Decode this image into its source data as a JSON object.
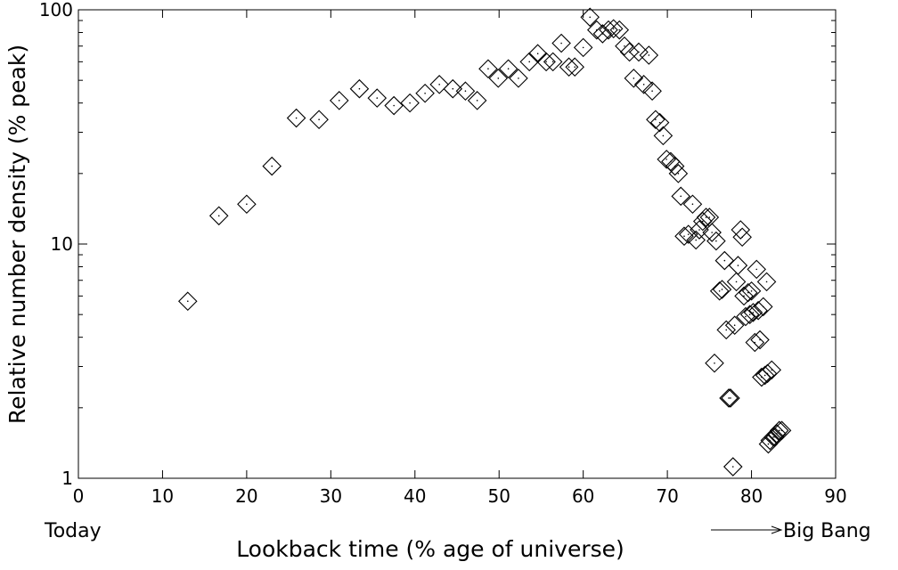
{
  "chart_data": {
    "type": "scatter",
    "title": "",
    "xlabel": "Lookback time (% age of universe)",
    "ylabel": "Relative number density (% peak)",
    "xlim": [
      0,
      90
    ],
    "ylim": [
      1,
      100
    ],
    "yscale": "log",
    "grid": false,
    "marker": "diamond",
    "x_ticks": [
      0,
      10,
      20,
      30,
      40,
      50,
      60,
      70,
      80,
      90
    ],
    "y_ticks": [
      1,
      10,
      100
    ],
    "x_tick_labels": [
      "0",
      "10",
      "20",
      "30",
      "40",
      "50",
      "60",
      "70",
      "80",
      "90"
    ],
    "y_tick_labels": [
      "1",
      "10",
      "100"
    ],
    "annotations": {
      "left": "Today",
      "right": "Big Bang"
    },
    "series": [
      {
        "points": [
          [
            13.0,
            5.7
          ],
          [
            16.7,
            13.2
          ],
          [
            20.0,
            14.8
          ],
          [
            23.0,
            21.5
          ],
          [
            25.9,
            34.5
          ],
          [
            28.6,
            34.0
          ],
          [
            31.0,
            41.0
          ],
          [
            33.4,
            46.0
          ],
          [
            35.5,
            42.0
          ],
          [
            37.5,
            39.0
          ],
          [
            39.4,
            40.0
          ],
          [
            41.2,
            44.0
          ],
          [
            42.9,
            48.0
          ],
          [
            44.5,
            46.0
          ],
          [
            46.0,
            45.0
          ],
          [
            47.4,
            41.0
          ],
          [
            48.7,
            56.0
          ],
          [
            49.9,
            51.0
          ],
          [
            51.1,
            56.0
          ],
          [
            52.3,
            51.0
          ],
          [
            53.6,
            60.0
          ],
          [
            54.6,
            65.0
          ],
          [
            55.6,
            60.0
          ],
          [
            56.4,
            60.0
          ],
          [
            57.4,
            72.0
          ],
          [
            58.3,
            57.0
          ],
          [
            59.0,
            57.0
          ],
          [
            60.0,
            69.0
          ],
          [
            60.8,
            93.0
          ],
          [
            61.6,
            82.0
          ],
          [
            62.3,
            79.0
          ],
          [
            63.0,
            82.0
          ],
          [
            63.6,
            83.0
          ],
          [
            64.3,
            82.0
          ],
          [
            64.9,
            70.0
          ],
          [
            65.5,
            66.0
          ],
          [
            66.0,
            51.0
          ],
          [
            66.6,
            66.0
          ],
          [
            67.2,
            48.0
          ],
          [
            67.8,
            64.0
          ],
          [
            68.2,
            45.0
          ],
          [
            68.6,
            34.0
          ],
          [
            69.1,
            33.0
          ],
          [
            69.5,
            29.0
          ],
          [
            69.9,
            23.0
          ],
          [
            70.4,
            22.5
          ],
          [
            70.9,
            21.5
          ],
          [
            71.3,
            20.0
          ],
          [
            71.6,
            16.0
          ],
          [
            72.0,
            10.8
          ],
          [
            72.5,
            11.0
          ],
          [
            73.0,
            14.8
          ],
          [
            73.4,
            10.4
          ],
          [
            73.8,
            11.5
          ],
          [
            74.2,
            12.5
          ],
          [
            74.6,
            13.0
          ],
          [
            75.0,
            13.0
          ],
          [
            75.3,
            11.2
          ],
          [
            75.6,
            3.1
          ],
          [
            75.8,
            10.3
          ],
          [
            76.2,
            6.3
          ],
          [
            76.5,
            6.4
          ],
          [
            76.8,
            8.5
          ],
          [
            77.0,
            4.3
          ],
          [
            77.3,
            2.2
          ],
          [
            77.5,
            2.2
          ],
          [
            77.8,
            1.12
          ],
          [
            78.0,
            4.5
          ],
          [
            78.2,
            6.9
          ],
          [
            78.4,
            8.1
          ],
          [
            78.7,
            11.5
          ],
          [
            78.9,
            10.7
          ],
          [
            79.1,
            6.0
          ],
          [
            79.3,
            4.9
          ],
          [
            79.6,
            6.2
          ],
          [
            79.8,
            5.0
          ],
          [
            80.0,
            6.3
          ],
          [
            80.2,
            5.1
          ],
          [
            80.4,
            3.8
          ],
          [
            80.6,
            7.8
          ],
          [
            80.8,
            5.2
          ],
          [
            81.0,
            3.9
          ],
          [
            81.2,
            2.7
          ],
          [
            81.4,
            5.4
          ],
          [
            81.6,
            2.75
          ],
          [
            81.8,
            6.9
          ],
          [
            81.9,
            2.8
          ],
          [
            82.0,
            1.4
          ],
          [
            82.2,
            1.45
          ],
          [
            82.4,
            2.9
          ],
          [
            82.6,
            1.5
          ],
          [
            82.8,
            1.5
          ],
          [
            83.0,
            1.55
          ],
          [
            83.3,
            1.6
          ],
          [
            83.6,
            1.6
          ]
        ]
      }
    ]
  }
}
